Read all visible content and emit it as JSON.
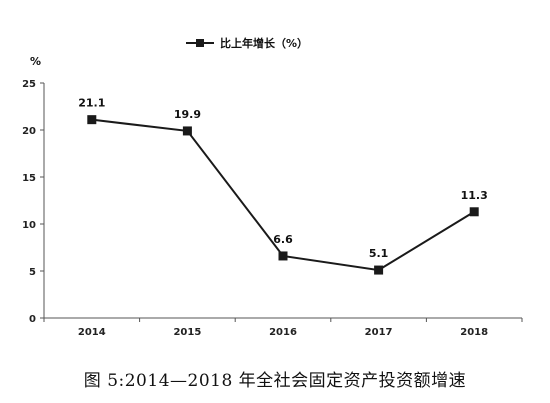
{
  "caption": "图 5:2014—2018 年全社会固定资产投资额增速",
  "chart_data": {
    "type": "line",
    "categories": [
      "2014",
      "2015",
      "2016",
      "2017",
      "2018"
    ],
    "series": [
      {
        "name": "比上年增长（%）",
        "values": [
          21.1,
          19.9,
          6.6,
          5.1,
          11.3
        ]
      }
    ],
    "data_labels": [
      "21.1",
      "19.9",
      "6.6",
      "5.1",
      "11.3"
    ],
    "ylabel": "%",
    "ylim": [
      0,
      25
    ],
    "yticks": [
      0,
      5,
      10,
      15,
      20,
      25
    ],
    "grid": false,
    "legend": "top-center",
    "line_color": "#1a1a1a"
  }
}
